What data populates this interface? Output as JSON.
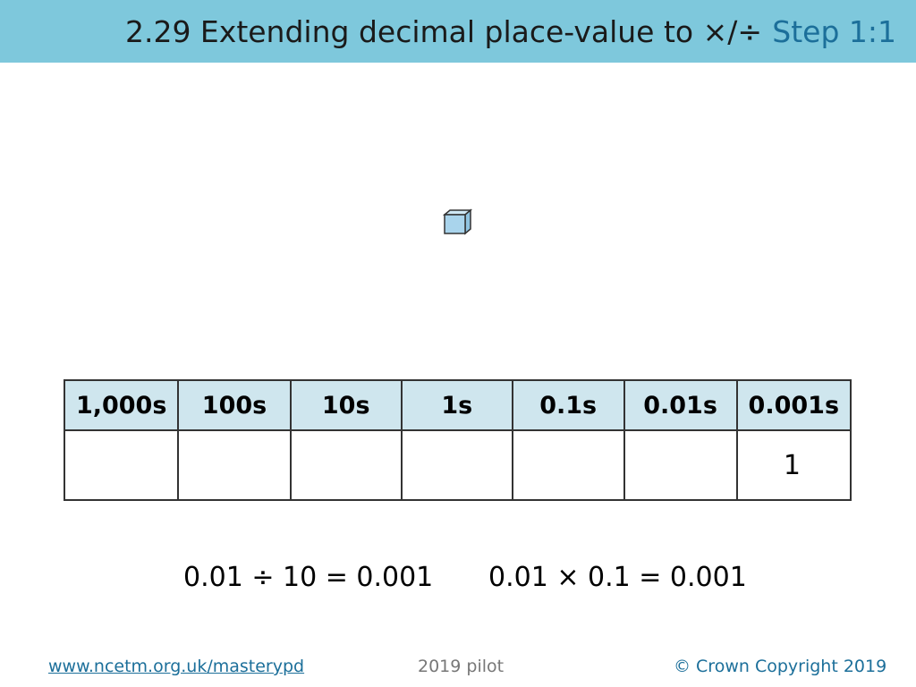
{
  "header": {
    "title": "2.29 Extending decimal place-value to ×/÷",
    "step": "Step 1:1"
  },
  "table": {
    "headers": [
      "1,000s",
      "100s",
      "10s",
      "1s",
      "0.1s",
      "0.01s",
      "0.001s"
    ],
    "rows": [
      [
        "",
        "",
        "",
        "",
        "",
        "",
        "1"
      ]
    ]
  },
  "equations": [
    "0.01 ÷ 10 = 0.001",
    "0.01 × 0.1 = 0.001"
  ],
  "footer": {
    "link": "www.ncetm.org.uk/masterypd",
    "center": "2019 pilot",
    "copyright": "© Crown Copyright 2019"
  }
}
